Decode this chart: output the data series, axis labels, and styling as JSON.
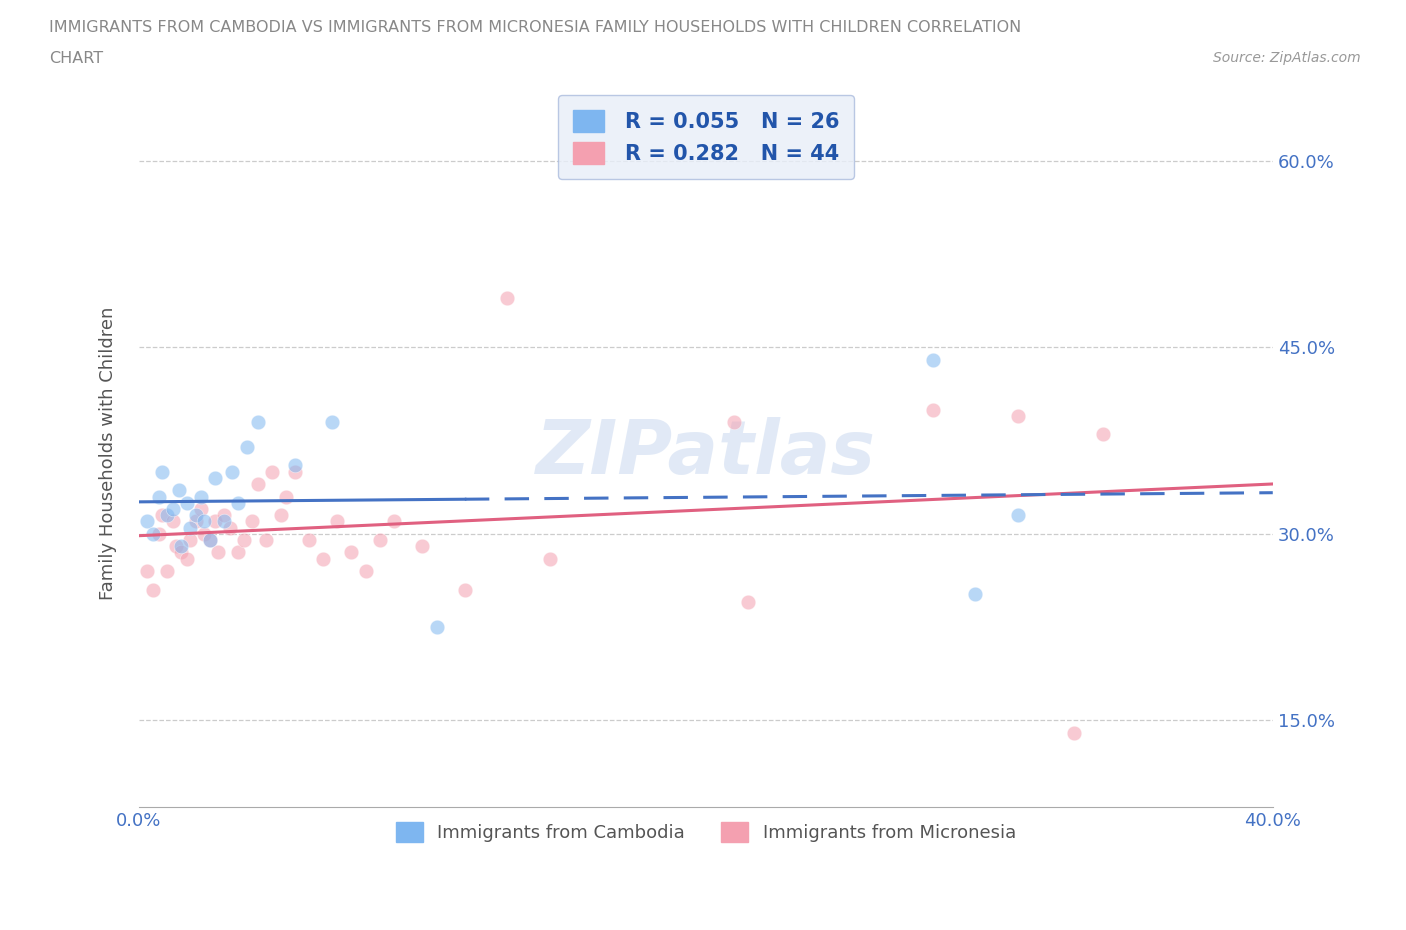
{
  "title_line1": "IMMIGRANTS FROM CAMBODIA VS IMMIGRANTS FROM MICRONESIA FAMILY HOUSEHOLDS WITH CHILDREN CORRELATION",
  "title_line2": "CHART",
  "source": "Source: ZipAtlas.com",
  "ylabel": "Family Households with Children",
  "xlim": [
    0.0,
    0.4
  ],
  "ylim": [
    0.08,
    0.65
  ],
  "yticks": [
    0.15,
    0.3,
    0.45,
    0.6
  ],
  "yticklabels": [
    "15.0%",
    "30.0%",
    "45.0%",
    "60.0%"
  ],
  "xticks": [
    0.0,
    0.1,
    0.2,
    0.3,
    0.4
  ],
  "xticklabels": [
    "0.0%",
    "",
    "",
    "",
    "40.0%"
  ],
  "r_cambodia": 0.055,
  "n_cambodia": 26,
  "r_micronesia": 0.282,
  "n_micronesia": 44,
  "color_cambodia": "#7EB6F0",
  "color_micronesia": "#F4A0B0",
  "line_color_cambodia": "#4472C4",
  "line_color_micronesia": "#E06080",
  "legend_bg": "#E8EEF8",
  "legend_edge": "#AABBDD",
  "legend_text_color": "#2255AA",
  "title_color": "#888888",
  "source_color": "#999999",
  "bg_color": "#FFFFFF",
  "grid_color": "#CCCCCC",
  "axis_tick_color": "#4472C4",
  "ylabel_color": "#555555",
  "scatter_size": 110,
  "scatter_alpha": 0.55,
  "watermark_color": "#C5D5EE",
  "watermark_alpha": 0.5,
  "cambodia_x": [
    0.003,
    0.005,
    0.007,
    0.008,
    0.01,
    0.012,
    0.014,
    0.015,
    0.017,
    0.018,
    0.02,
    0.022,
    0.023,
    0.025,
    0.027,
    0.03,
    0.033,
    0.035,
    0.038,
    0.042,
    0.055,
    0.068,
    0.105,
    0.28,
    0.295,
    0.31
  ],
  "cambodia_y": [
    0.31,
    0.3,
    0.33,
    0.35,
    0.315,
    0.32,
    0.335,
    0.29,
    0.325,
    0.305,
    0.315,
    0.33,
    0.31,
    0.295,
    0.345,
    0.31,
    0.35,
    0.325,
    0.37,
    0.39,
    0.355,
    0.39,
    0.225,
    0.44,
    0.252,
    0.315
  ],
  "micronesia_x": [
    0.003,
    0.005,
    0.007,
    0.008,
    0.01,
    0.012,
    0.013,
    0.015,
    0.017,
    0.018,
    0.02,
    0.022,
    0.023,
    0.025,
    0.027,
    0.028,
    0.03,
    0.032,
    0.035,
    0.037,
    0.04,
    0.042,
    0.045,
    0.047,
    0.05,
    0.052,
    0.055,
    0.06,
    0.065,
    0.07,
    0.075,
    0.08,
    0.085,
    0.09,
    0.1,
    0.115,
    0.13,
    0.145,
    0.21,
    0.215,
    0.28,
    0.31,
    0.33,
    0.34
  ],
  "micronesia_y": [
    0.27,
    0.255,
    0.3,
    0.315,
    0.27,
    0.31,
    0.29,
    0.285,
    0.28,
    0.295,
    0.31,
    0.32,
    0.3,
    0.295,
    0.31,
    0.285,
    0.315,
    0.305,
    0.285,
    0.295,
    0.31,
    0.34,
    0.295,
    0.35,
    0.315,
    0.33,
    0.35,
    0.295,
    0.28,
    0.31,
    0.285,
    0.27,
    0.295,
    0.31,
    0.29,
    0.255,
    0.49,
    0.28,
    0.39,
    0.245,
    0.4,
    0.395,
    0.14,
    0.38
  ],
  "cam_solid_xlim": [
    0.0,
    0.115
  ],
  "cam_dash_xlim": [
    0.115,
    0.4
  ]
}
